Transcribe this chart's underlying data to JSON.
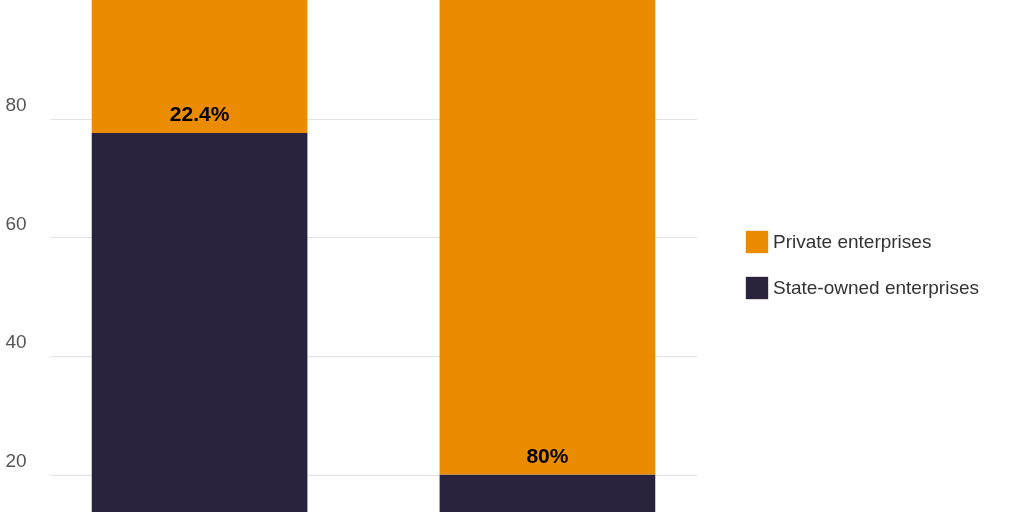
{
  "chart_data": {
    "type": "bar",
    "stacked": true,
    "categories": [
      null,
      null
    ],
    "series": [
      {
        "name": "State-owned enterprises",
        "color": "#29233d",
        "values": [
          77.6,
          20
        ]
      },
      {
        "name": "Private enterprises",
        "color": "#eb8c00",
        "values": [
          22.4,
          80
        ],
        "value_labels": [
          "22.4%",
          "80%"
        ]
      }
    ],
    "ylim": [
      13.7,
      100
    ],
    "yticks": [
      20,
      40,
      60,
      80
    ],
    "grid": "y",
    "legend": "right",
    "tick_labels": "y"
  }
}
